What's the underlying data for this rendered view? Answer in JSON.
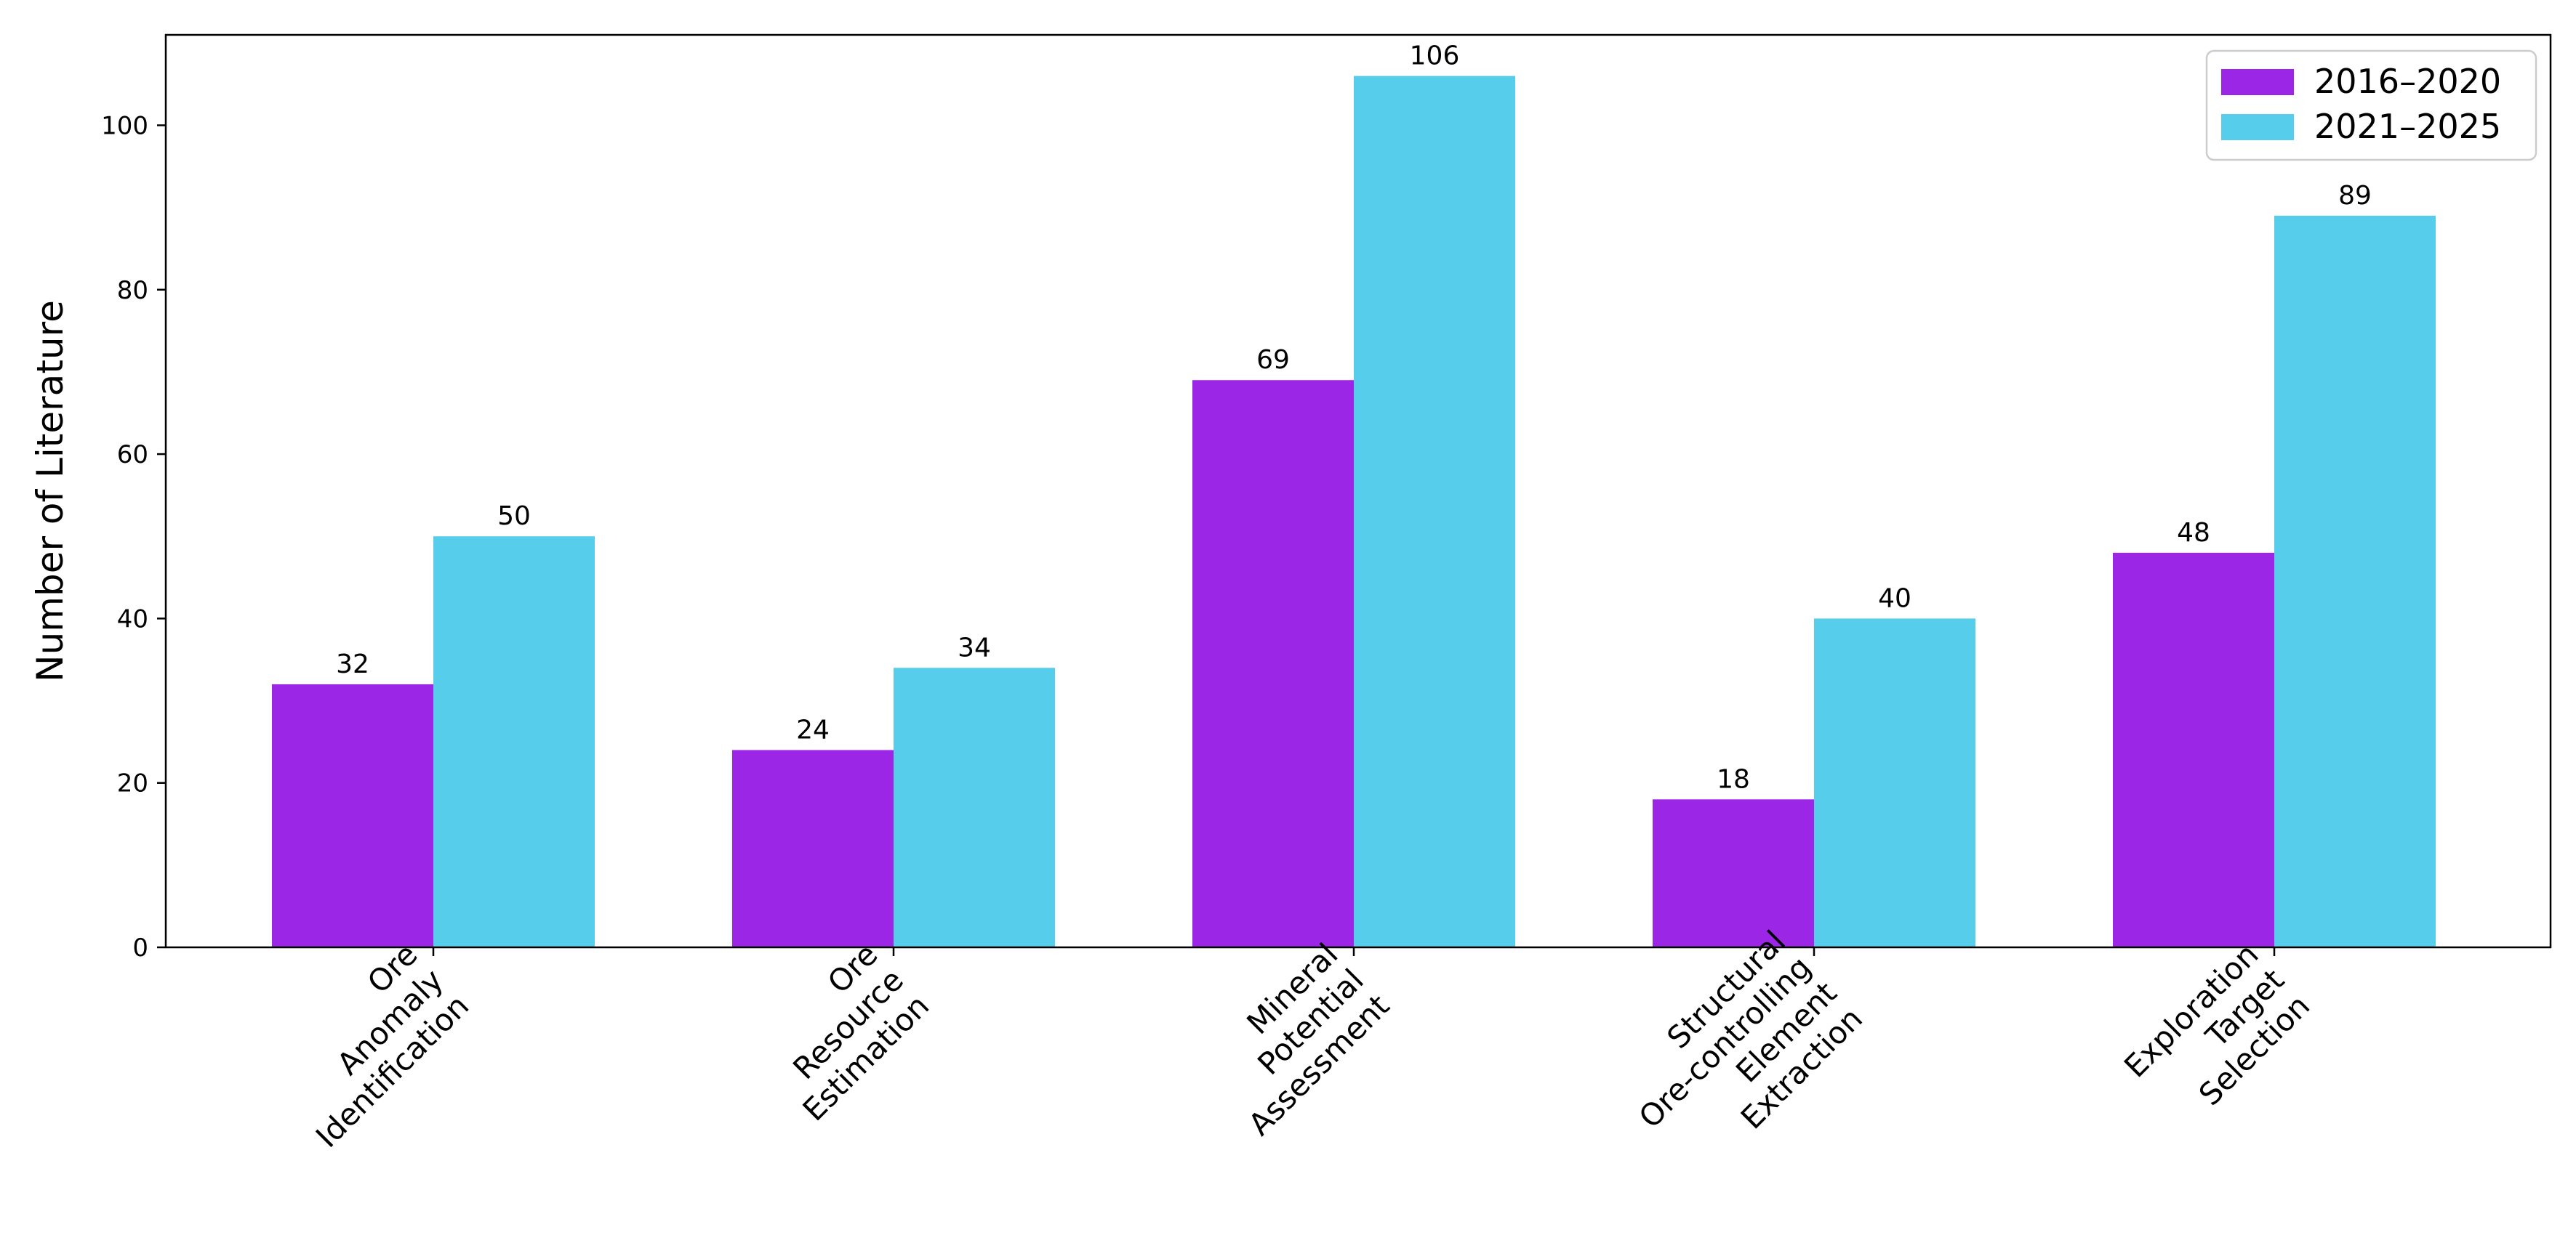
{
  "chart_data": {
    "type": "bar",
    "title": "",
    "xlabel": "",
    "ylabel": "Number of Literature",
    "ylim": [
      0,
      111
    ],
    "yticks": [
      0,
      20,
      40,
      60,
      80,
      100
    ],
    "grid": false,
    "legend_position": "top-right",
    "categories": [
      [
        "Ore",
        "Anomaly",
        "Identification"
      ],
      [
        "Ore",
        "Resource",
        "Estimation"
      ],
      [
        "Mineral",
        "Potential",
        "Assessment"
      ],
      [
        "Structural",
        "Ore-controlling",
        "Element",
        "Extraction"
      ],
      [
        "Exploration",
        "Target",
        "Selection"
      ]
    ],
    "series": [
      {
        "name": "2016–2020",
        "color": "#9b26e6",
        "values": [
          32,
          24,
          69,
          18,
          48
        ]
      },
      {
        "name": "2021–2025",
        "color": "#57cdec",
        "values": [
          50,
          34,
          106,
          40,
          89
        ]
      }
    ]
  }
}
